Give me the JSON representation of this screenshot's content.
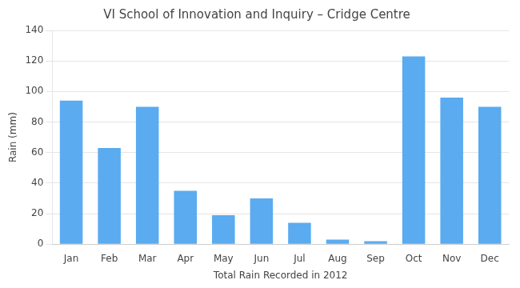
{
  "chart_data": {
    "type": "bar",
    "title": "VI School of Innovation and Inquiry – Cridge Centre",
    "xlabel": "Total Rain Recorded in 2012",
    "ylabel": "Rain (mm)",
    "categories": [
      "Jan",
      "Feb",
      "Mar",
      "Apr",
      "May",
      "Jun",
      "Jul",
      "Aug",
      "Sep",
      "Oct",
      "Nov",
      "Dec"
    ],
    "values": [
      94,
      63,
      90,
      35,
      19,
      30,
      14,
      3,
      2,
      123,
      96,
      90
    ],
    "color": "#5aabf0",
    "ylim": [
      0,
      140
    ],
    "yticks": [
      0,
      20,
      40,
      60,
      80,
      100,
      120,
      140
    ],
    "grid": true
  }
}
